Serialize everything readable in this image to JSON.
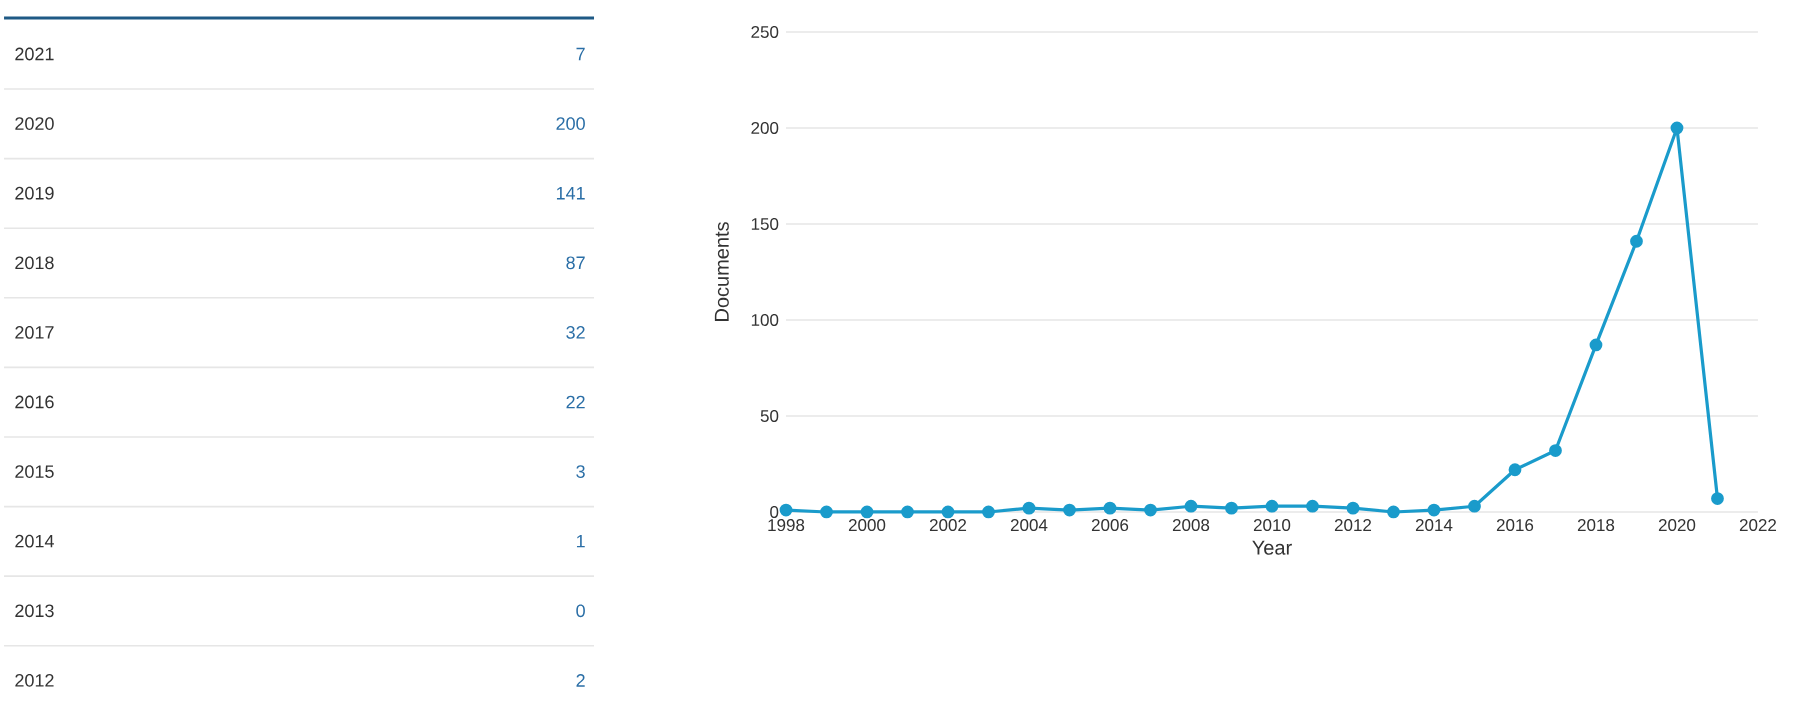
{
  "chart_data": [
    {
      "type": "heatmap",
      "categories": [
        null
      ],
      "y_categories": [
        "2021",
        "2020",
        "2019",
        "2018",
        "2017",
        "2016",
        "2015",
        "2014",
        "2013",
        "2012"
      ],
      "cells": [
        [
          7
        ],
        [
          200
        ],
        [
          141
        ],
        [
          87
        ],
        [
          32
        ],
        [
          22
        ],
        [
          3
        ],
        [
          1
        ],
        [
          0
        ],
        [
          2
        ]
      ],
      "data_labels": true
    },
    {
      "type": "line",
      "xlabel": "Year",
      "ylabel": "Documents",
      "x": [
        1998,
        1999,
        2000,
        2001,
        2002,
        2003,
        2004,
        2005,
        2006,
        2007,
        2008,
        2009,
        2010,
        2011,
        2012,
        2013,
        2014,
        2015,
        2016,
        2017,
        2018,
        2019,
        2020,
        2021
      ],
      "values": [
        1,
        0,
        0,
        0,
        0,
        0,
        2,
        1,
        2,
        1,
        3,
        2,
        3,
        3,
        2,
        0,
        1,
        3,
        22,
        32,
        87,
        141,
        200,
        7
      ],
      "color": "#1a9bcb",
      "xlim": [
        1998,
        2022
      ],
      "xticks": [
        1998,
        2000,
        2002,
        2004,
        2006,
        2008,
        2010,
        2012,
        2014,
        2016,
        2018,
        2020,
        2022
      ],
      "ylim": [
        0,
        250
      ],
      "yticks": [
        0,
        50,
        100,
        150,
        200,
        250
      ],
      "grid": "y",
      "marker": "circle",
      "line_style": "solid"
    }
  ]
}
